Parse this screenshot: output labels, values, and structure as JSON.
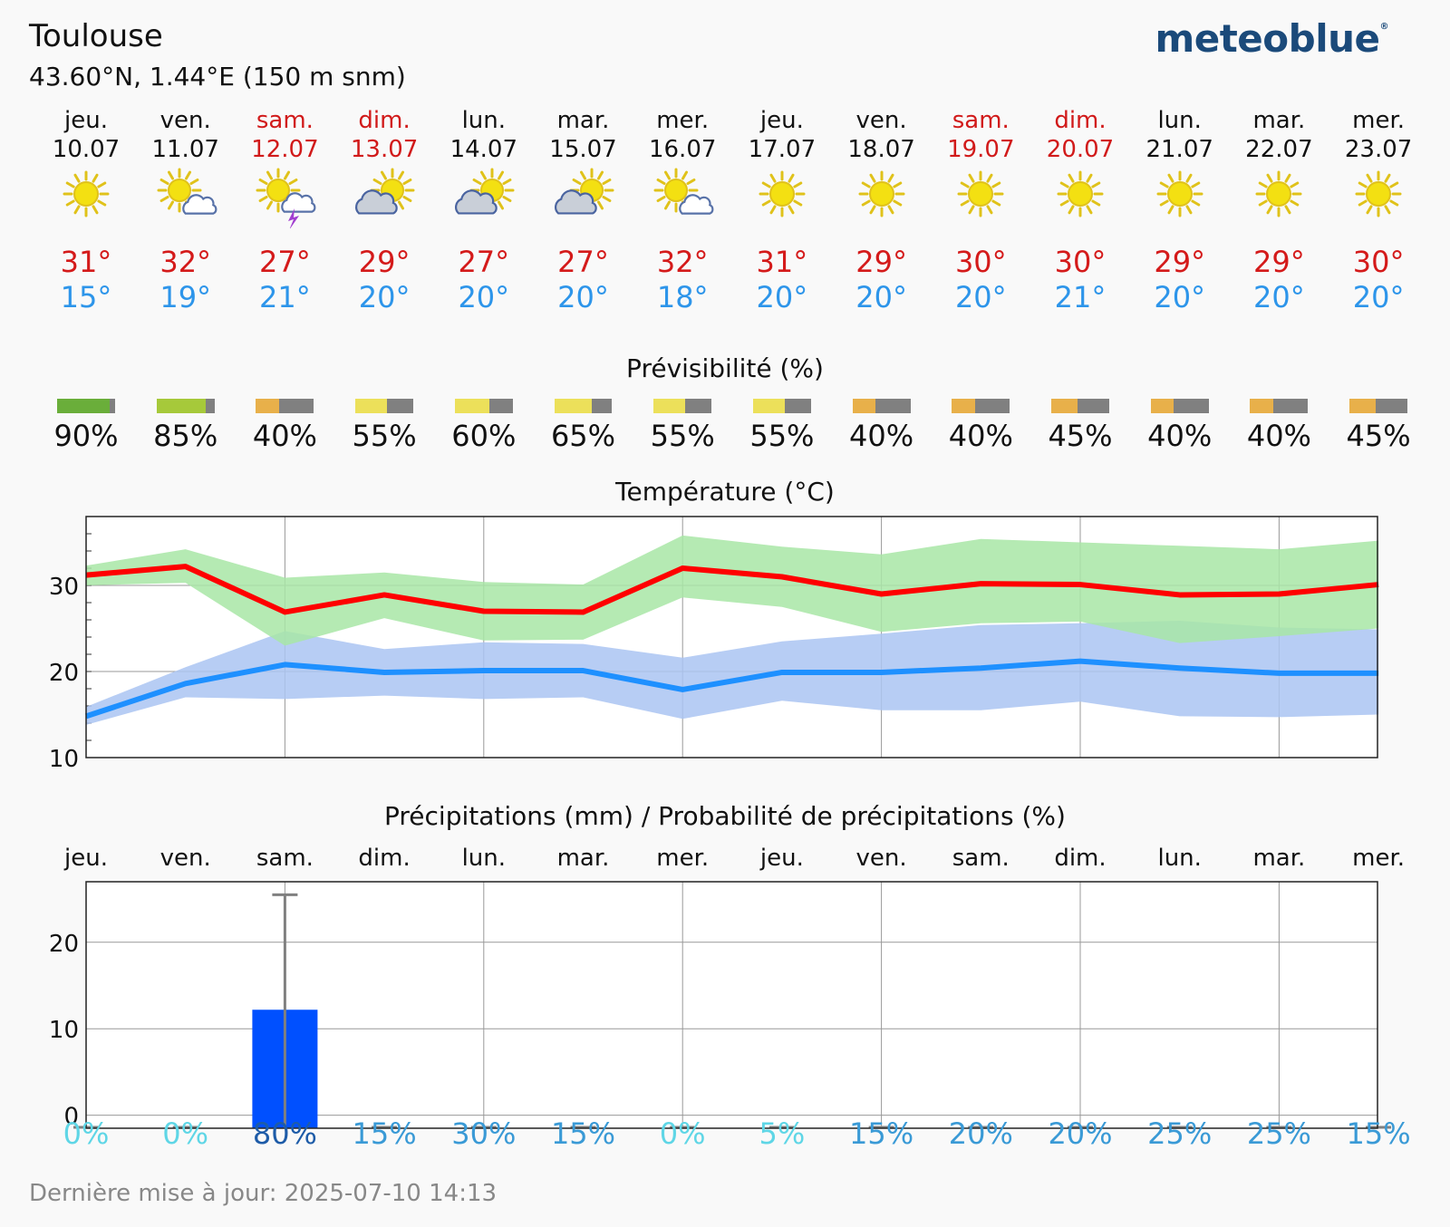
{
  "header": {
    "city": "Toulouse",
    "coords": "43.60°N, 1.44°E (150 m snm)",
    "logo": "meteoblue",
    "logo_mark": "®"
  },
  "days": [
    {
      "name": "jeu.",
      "date": "10.07",
      "weekend": false,
      "icon": "sun-icon",
      "tmax": "31°",
      "tmin": "15°",
      "predict": "90%",
      "predict_value": 90,
      "predict_color": "#6aae3a",
      "precip_prob": "0%",
      "prob_color": "#5fd6e6"
    },
    {
      "name": "ven.",
      "date": "11.07",
      "weekend": false,
      "icon": "sun-cloud-icon",
      "tmax": "32°",
      "tmin": "19°",
      "predict": "85%",
      "predict_value": 85,
      "predict_color": "#a6c93a",
      "precip_prob": "0%",
      "prob_color": "#5fd6e6"
    },
    {
      "name": "sam.",
      "date": "12.07",
      "weekend": true,
      "icon": "sun-thunder-icon",
      "tmax": "27°",
      "tmin": "21°",
      "predict": "40%",
      "predict_value": 40,
      "predict_color": "#e8b04a",
      "precip_prob": "80%",
      "prob_color": "#1e5ca8"
    },
    {
      "name": "dim.",
      "date": "13.07",
      "weekend": true,
      "icon": "cloud-sun-icon",
      "tmax": "29°",
      "tmin": "20°",
      "predict": "55%",
      "predict_value": 55,
      "predict_color": "#ece05a",
      "precip_prob": "15%",
      "prob_color": "#3a9ad6"
    },
    {
      "name": "lun.",
      "date": "14.07",
      "weekend": false,
      "icon": "cloud-sun-icon",
      "tmax": "27°",
      "tmin": "20°",
      "predict": "60%",
      "predict_value": 60,
      "predict_color": "#ece05a",
      "precip_prob": "30%",
      "prob_color": "#3a9ad6"
    },
    {
      "name": "mar.",
      "date": "15.07",
      "weekend": false,
      "icon": "cloud-sun-icon",
      "tmax": "27°",
      "tmin": "20°",
      "predict": "65%",
      "predict_value": 65,
      "predict_color": "#ece05a",
      "precip_prob": "15%",
      "prob_color": "#3a9ad6"
    },
    {
      "name": "mer.",
      "date": "16.07",
      "weekend": false,
      "icon": "sun-cloud-icon",
      "tmax": "32°",
      "tmin": "18°",
      "predict": "55%",
      "predict_value": 55,
      "predict_color": "#ece05a",
      "precip_prob": "0%",
      "prob_color": "#5fd6e6"
    },
    {
      "name": "jeu.",
      "date": "17.07",
      "weekend": false,
      "icon": "sun-icon",
      "tmax": "31°",
      "tmin": "20°",
      "predict": "55%",
      "predict_value": 55,
      "predict_color": "#ece05a",
      "precip_prob": "5%",
      "prob_color": "#5fd6e6"
    },
    {
      "name": "ven.",
      "date": "18.07",
      "weekend": false,
      "icon": "sun-icon",
      "tmax": "29°",
      "tmin": "20°",
      "predict": "40%",
      "predict_value": 40,
      "predict_color": "#e8b04a",
      "precip_prob": "15%",
      "prob_color": "#3a9ad6"
    },
    {
      "name": "sam.",
      "date": "19.07",
      "weekend": true,
      "icon": "sun-icon",
      "tmax": "30°",
      "tmin": "20°",
      "predict": "40%",
      "predict_value": 40,
      "predict_color": "#e8b04a",
      "precip_prob": "20%",
      "prob_color": "#3a9ad6"
    },
    {
      "name": "dim.",
      "date": "20.07",
      "weekend": true,
      "icon": "sun-icon",
      "tmax": "30°",
      "tmin": "21°",
      "predict": "45%",
      "predict_value": 45,
      "predict_color": "#e8b04a",
      "precip_prob": "20%",
      "prob_color": "#3a9ad6"
    },
    {
      "name": "lun.",
      "date": "21.07",
      "weekend": false,
      "icon": "sun-icon",
      "tmax": "29°",
      "tmin": "20°",
      "predict": "40%",
      "predict_value": 40,
      "predict_color": "#e8b04a",
      "precip_prob": "25%",
      "prob_color": "#3a9ad6"
    },
    {
      "name": "mar.",
      "date": "22.07",
      "weekend": false,
      "icon": "sun-icon",
      "tmax": "29°",
      "tmin": "20°",
      "predict": "40%",
      "predict_value": 40,
      "predict_color": "#e8b04a",
      "precip_prob": "25%",
      "prob_color": "#3a9ad6"
    },
    {
      "name": "mer.",
      "date": "23.07",
      "weekend": false,
      "icon": "sun-icon",
      "tmax": "30°",
      "tmin": "20°",
      "predict": "45%",
      "predict_value": 45,
      "predict_color": "#e8b04a",
      "precip_prob": "15%",
      "prob_color": "#3a9ad6"
    }
  ],
  "predictability": {
    "title": "Prévisibilité (%)",
    "rest_color": "#808080"
  },
  "colors": {
    "tmax": "#d41a1a",
    "tmin": "#2d95ea",
    "weekend": "#d11a1a",
    "max_band": "#a8e6a6",
    "min_band": "#aac4f2",
    "max_line": "#ff0000",
    "min_line": "#1e90ff",
    "bar": "#0050ff",
    "whisker": "#808080"
  },
  "footer": {
    "updated": "Dernière mise à jour: 2025-07-10 14:13"
  },
  "chart_data": [
    {
      "type": "line",
      "title": "Température (°C)",
      "categories": [
        "10.07",
        "11.07",
        "12.07",
        "13.07",
        "14.07",
        "15.07",
        "16.07",
        "17.07",
        "18.07",
        "19.07",
        "20.07",
        "21.07",
        "22.07",
        "23.07"
      ],
      "ylim": [
        10,
        38
      ],
      "yticks": [
        10,
        20,
        30
      ],
      "grid": true,
      "series": [
        {
          "values": [
            31.2,
            32.2,
            26.9,
            28.9,
            27.0,
            26.9,
            32.0,
            31.0,
            29.0,
            30.2,
            30.1,
            28.9,
            29.0,
            30.1
          ]
        },
        {
          "values": [
            32.3,
            34.2,
            30.9,
            31.5,
            30.4,
            30.1,
            35.8,
            34.5,
            33.6,
            35.4,
            35.0,
            34.6,
            34.2,
            35.2
          ]
        },
        {
          "values": [
            30.0,
            30.3,
            23.0,
            26.2,
            23.6,
            23.7,
            28.6,
            27.5,
            24.6,
            25.6,
            25.8,
            23.3,
            24.1,
            25.0
          ]
        },
        {
          "values": [
            14.8,
            18.6,
            20.8,
            19.9,
            20.1,
            20.1,
            17.9,
            19.9,
            19.9,
            20.4,
            21.2,
            20.4,
            19.8,
            19.8
          ]
        },
        {
          "values": [
            15.9,
            20.5,
            24.7,
            22.6,
            23.4,
            23.2,
            21.6,
            23.5,
            24.4,
            25.4,
            25.6,
            25.9,
            25.1,
            24.9
          ]
        },
        {
          "values": [
            13.8,
            17.0,
            16.8,
            17.2,
            16.8,
            17.0,
            14.5,
            16.6,
            15.5,
            15.5,
            16.5,
            14.8,
            14.7,
            15.0
          ]
        }
      ]
    },
    {
      "type": "bar",
      "title": "Précipitations (mm) / Probabilité de précipitations (%)",
      "categories": [
        "jeu.",
        "ven.",
        "sam.",
        "dim.",
        "lun.",
        "mar.",
        "mer.",
        "jeu.",
        "ven.",
        "sam.",
        "dim.",
        "lun.",
        "mar.",
        "mer."
      ],
      "values": [
        0,
        0,
        12.2,
        0,
        0,
        0,
        0,
        0,
        0,
        0,
        0,
        0,
        0,
        0
      ],
      "whisker_max": [
        0,
        0,
        25.5,
        0,
        0,
        0,
        0,
        0,
        0,
        0,
        0,
        0,
        0,
        0
      ],
      "probability": [
        "0%",
        "0%",
        "80%",
        "15%",
        "30%",
        "15%",
        "0%",
        "5%",
        "15%",
        "20%",
        "20%",
        "25%",
        "25%",
        "15%"
      ],
      "ylim": [
        -1.5,
        27
      ],
      "yticks": [
        0,
        10,
        20
      ],
      "grid": true
    }
  ]
}
